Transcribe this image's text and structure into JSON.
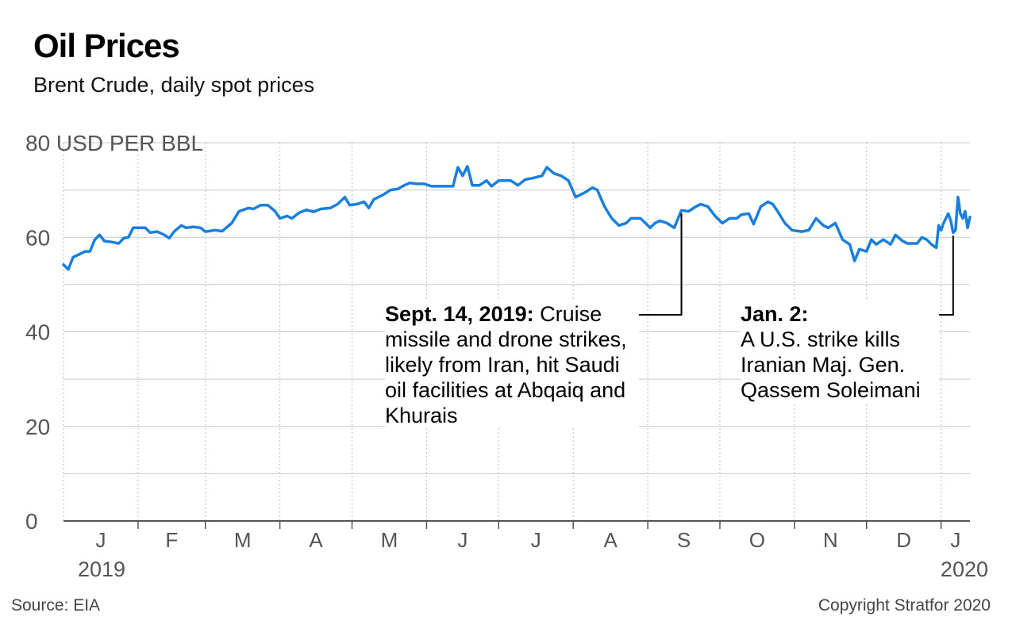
{
  "title": "Oil Prices",
  "subtitle": "Brent Crude, daily spot prices",
  "source": "Source: EIA",
  "copyright": "Copyright Stratfor 2020",
  "colors": {
    "line": "#1a7fdc",
    "grid": "#c8c8c8",
    "axis": "#555555"
  },
  "chart_data": {
    "type": "line",
    "ylabel": "USD PER BBL",
    "ylim": [
      0,
      80
    ],
    "y_ticks": [
      0,
      20,
      40,
      60,
      80
    ],
    "y_tick_labels": [
      "0",
      "20",
      "40",
      "60",
      "80 USD PER BBL"
    ],
    "x_ticks": [
      "J",
      "F",
      "M",
      "A",
      "M",
      "J",
      "J",
      "A",
      "S",
      "O",
      "N",
      "D",
      "J"
    ],
    "x_year_labels": [
      "2019",
      "2020"
    ],
    "grid": "horizontal solid, vertical dotted",
    "xlim": [
      "2019-01-01",
      "2020-01-13"
    ],
    "series": [
      {
        "values": [
          [
            "2019-01-01",
            54.2
          ],
          [
            "2019-01-03",
            53.2
          ],
          [
            "2019-01-05",
            55.8
          ],
          [
            "2019-01-08",
            56.5
          ],
          [
            "2019-01-10",
            57.0
          ],
          [
            "2019-01-12",
            57.0
          ],
          [
            "2019-01-14",
            59.5
          ],
          [
            "2019-01-16",
            60.5
          ],
          [
            "2019-01-18",
            59.2
          ],
          [
            "2019-01-21",
            59.0
          ],
          [
            "2019-01-24",
            58.7
          ],
          [
            "2019-01-26",
            59.8
          ],
          [
            "2019-01-28",
            60.0
          ],
          [
            "2019-01-30",
            62.0
          ],
          [
            "2019-02-04",
            62.0
          ],
          [
            "2019-02-06",
            61.0
          ],
          [
            "2019-02-09",
            61.2
          ],
          [
            "2019-02-12",
            60.5
          ],
          [
            "2019-02-14",
            59.8
          ],
          [
            "2019-02-16",
            61.2
          ],
          [
            "2019-02-19",
            62.5
          ],
          [
            "2019-02-21",
            62.0
          ],
          [
            "2019-02-24",
            62.2
          ],
          [
            "2019-02-27",
            62.0
          ],
          [
            "2019-03-01",
            61.2
          ],
          [
            "2019-03-05",
            61.5
          ],
          [
            "2019-03-08",
            61.3
          ],
          [
            "2019-03-12",
            63.0
          ],
          [
            "2019-03-15",
            65.5
          ],
          [
            "2019-03-19",
            66.2
          ],
          [
            "2019-03-21",
            66.0
          ],
          [
            "2019-03-24",
            66.8
          ],
          [
            "2019-03-27",
            66.8
          ],
          [
            "2019-03-30",
            65.5
          ],
          [
            "2019-04-01",
            64.0
          ],
          [
            "2019-04-04",
            64.5
          ],
          [
            "2019-04-06",
            64.0
          ],
          [
            "2019-04-09",
            65.2
          ],
          [
            "2019-04-12",
            65.8
          ],
          [
            "2019-04-15",
            65.4
          ],
          [
            "2019-04-18",
            66.0
          ],
          [
            "2019-04-22",
            66.2
          ],
          [
            "2019-04-25",
            67.0
          ],
          [
            "2019-04-28",
            68.5
          ],
          [
            "2019-04-30",
            66.8
          ],
          [
            "2019-05-03",
            67.0
          ],
          [
            "2019-05-06",
            67.5
          ],
          [
            "2019-05-08",
            66.2
          ],
          [
            "2019-05-10",
            68.0
          ],
          [
            "2019-05-14",
            69.0
          ],
          [
            "2019-05-17",
            70.0
          ],
          [
            "2019-05-20",
            70.2
          ],
          [
            "2019-05-22",
            70.8
          ],
          [
            "2019-05-25",
            71.5
          ],
          [
            "2019-05-28",
            71.3
          ],
          [
            "2019-05-31",
            71.3
          ],
          [
            "2019-06-03",
            70.8
          ],
          [
            "2019-06-06",
            70.8
          ],
          [
            "2019-06-09",
            70.8
          ],
          [
            "2019-06-12",
            70.8
          ],
          [
            "2019-06-14",
            74.8
          ],
          [
            "2019-06-16",
            73.0
          ],
          [
            "2019-06-18",
            75.0
          ],
          [
            "2019-06-20",
            71.0
          ],
          [
            "2019-06-23",
            71.0
          ],
          [
            "2019-06-26",
            72.0
          ],
          [
            "2019-06-28",
            70.8
          ],
          [
            "2019-07-01",
            72.0
          ],
          [
            "2019-07-04",
            72.0
          ],
          [
            "2019-07-06",
            72.0
          ],
          [
            "2019-07-09",
            71.0
          ],
          [
            "2019-07-12",
            72.2
          ],
          [
            "2019-07-15",
            72.5
          ],
          [
            "2019-07-19",
            73.0
          ],
          [
            "2019-07-21",
            74.8
          ],
          [
            "2019-07-24",
            73.5
          ],
          [
            "2019-07-27",
            73.0
          ],
          [
            "2019-07-30",
            72.0
          ],
          [
            "2019-08-02",
            68.5
          ],
          [
            "2019-08-06",
            69.5
          ],
          [
            "2019-08-09",
            70.5
          ],
          [
            "2019-08-11",
            70.0
          ],
          [
            "2019-08-14",
            66.5
          ],
          [
            "2019-08-17",
            64.0
          ],
          [
            "2019-08-20",
            62.5
          ],
          [
            "2019-08-23",
            63.0
          ],
          [
            "2019-08-25",
            64.0
          ],
          [
            "2019-08-29",
            64.0
          ],
          [
            "2019-09-02",
            62.0
          ],
          [
            "2019-09-04",
            63.0
          ],
          [
            "2019-09-06",
            63.5
          ],
          [
            "2019-09-09",
            63.0
          ],
          [
            "2019-09-12",
            62.0
          ],
          [
            "2019-09-15",
            65.7
          ],
          [
            "2019-09-18",
            65.5
          ],
          [
            "2019-09-21",
            66.5
          ],
          [
            "2019-09-23",
            67.0
          ],
          [
            "2019-09-26",
            66.5
          ],
          [
            "2019-09-29",
            64.5
          ],
          [
            "2019-10-02",
            63.0
          ],
          [
            "2019-10-05",
            64.0
          ],
          [
            "2019-10-08",
            64.0
          ],
          [
            "2019-10-10",
            64.8
          ],
          [
            "2019-10-13",
            65.0
          ],
          [
            "2019-10-15",
            62.8
          ],
          [
            "2019-10-18",
            66.5
          ],
          [
            "2019-10-21",
            67.5
          ],
          [
            "2019-10-23",
            67.0
          ],
          [
            "2019-10-25",
            65.5
          ],
          [
            "2019-10-28",
            63.0
          ],
          [
            "2019-10-31",
            61.5
          ],
          [
            "2019-11-04",
            61.2
          ],
          [
            "2019-11-07",
            61.5
          ],
          [
            "2019-11-10",
            64.0
          ],
          [
            "2019-11-13",
            62.5
          ],
          [
            "2019-11-15",
            62.0
          ],
          [
            "2019-11-18",
            63.0
          ],
          [
            "2019-11-21",
            59.5
          ],
          [
            "2019-11-24",
            58.5
          ],
          [
            "2019-11-26",
            55.0
          ],
          [
            "2019-11-28",
            57.5
          ],
          [
            "2019-12-01",
            57.0
          ],
          [
            "2019-12-03",
            59.5
          ],
          [
            "2019-12-05",
            58.5
          ],
          [
            "2019-12-08",
            59.5
          ],
          [
            "2019-12-11",
            58.5
          ],
          [
            "2019-12-13",
            60.5
          ],
          [
            "2019-12-16",
            59.2
          ],
          [
            "2019-12-18",
            58.7
          ],
          [
            "2019-12-20",
            58.7
          ],
          [
            "2019-12-22",
            58.7
          ],
          [
            "2019-12-24",
            60.0
          ],
          [
            "2019-12-26",
            59.5
          ],
          [
            "2019-12-28",
            58.5
          ],
          [
            "2019-12-30",
            57.8
          ],
          [
            "2019-12-31",
            62.5
          ],
          [
            "2020-01-01",
            61.5
          ],
          [
            "2020-01-02",
            63.0
          ],
          [
            "2020-01-03",
            64.0
          ],
          [
            "2020-01-04",
            65.0
          ],
          [
            "2020-01-05",
            63.5
          ],
          [
            "2020-01-06",
            61.0
          ],
          [
            "2020-01-07",
            61.5
          ],
          [
            "2020-01-08",
            68.5
          ],
          [
            "2020-01-09",
            65.0
          ],
          [
            "2020-01-10",
            64.0
          ],
          [
            "2020-01-11",
            65.5
          ],
          [
            "2020-01-12",
            62.0
          ],
          [
            "2020-01-13",
            64.3
          ]
        ]
      }
    ],
    "annotations": [
      {
        "bold": "Sept. 14, 2019:",
        "text": " Cruise missile and drone strikes, likely from Iran, hit Saudi oil facilities at Abqaiq and Khurais"
      },
      {
        "bold": "Jan. 2:",
        "text": "A U.S. strike kills Iranian Maj. Gen. Qassem Soleimani"
      }
    ]
  }
}
